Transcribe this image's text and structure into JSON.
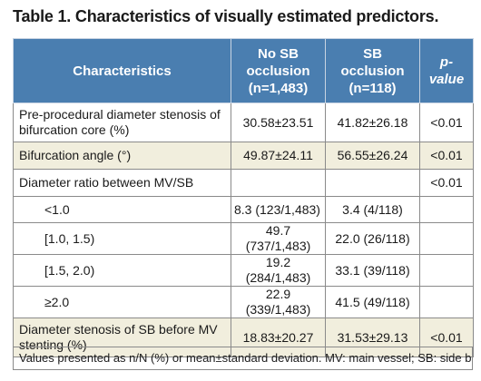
{
  "title": "Table 1. Characteristics of visually estimated predictors.",
  "headers": {
    "characteristics": "Characteristics",
    "no_sb": "No SB occlusion (n=1,483)",
    "sb": "SB occlusion (n=118)",
    "p_italic": "p",
    "p_rest": "-value"
  },
  "rows": [
    {
      "label": "Pre-procedural diameter stenosis of bifurcation core (%)",
      "no_sb": "30.58±23.51",
      "sb": "41.82±26.18",
      "p": "<0.01"
    },
    {
      "label": "Bifurcation angle (°)",
      "no_sb": "49.87±24.11",
      "sb": "56.55±26.24",
      "p": "<0.01"
    },
    {
      "label": "Diameter ratio between MV/SB",
      "no_sb": "",
      "sb": "",
      "p": "<0.01"
    },
    {
      "label": "<1.0",
      "no_sb": "8.3 (123/1,483)",
      "sb": "3.4 (4/118)",
      "p": ""
    },
    {
      "label": "[1.0, 1.5)",
      "no_sb": "49.7 (737/1,483)",
      "sb": "22.0 (26/118)",
      "p": ""
    },
    {
      "label": "[1.5, 2.0)",
      "no_sb": "19.2 (284/1,483)",
      "sb": "33.1 (39/118)",
      "p": ""
    },
    {
      "label": "≥2.0",
      "no_sb": "22.9 (339/1,483)",
      "sb": "41.5 (49/118)",
      "p": ""
    },
    {
      "label": "Diameter stenosis of SB before MV stenting (%)",
      "no_sb": "18.83±20.27",
      "sb": "31.53±29.13",
      "p": "<0.01"
    }
  ],
  "footnote": "Values presented as n/N (%) or mean±standard deviation. MV: main vessel; SB: side branch",
  "colors": {
    "header_bg": "#4a7eb0",
    "shade_bg": "#f1eedd"
  }
}
